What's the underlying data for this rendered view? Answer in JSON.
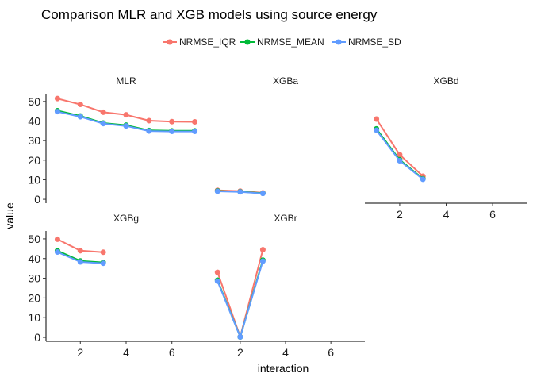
{
  "chart_data": {
    "type": "line",
    "title": "Comparison MLR and XGB models using source energy",
    "xlabel": "interaction",
    "ylabel": "value",
    "x_ticks": [
      2,
      4,
      6
    ],
    "y_ticks": [
      0,
      10,
      20,
      30,
      40,
      50
    ],
    "xlim": [
      0.5,
      7.5
    ],
    "ylim": [
      -2,
      54
    ],
    "grid": false,
    "legend": {
      "position": "top",
      "entries": [
        "NRMSE_IQR",
        "NRMSE_MEAN",
        "NRMSE_SD"
      ],
      "colors": [
        "#F8766D",
        "#00BA38",
        "#619CFF"
      ]
    },
    "panels": [
      {
        "name": "MLR",
        "series": [
          {
            "name": "NRMSE_IQR",
            "x": [
              1,
              2,
              3,
              4,
              5,
              6,
              7
            ],
            "values": [
              51.5,
              48.5,
              44.5,
              43.2,
              40.2,
              39.7,
              39.6
            ]
          },
          {
            "name": "NRMSE_MEAN",
            "x": [
              1,
              2,
              3,
              4,
              5,
              6,
              7
            ],
            "values": [
              45.3,
              42.6,
              39.0,
              37.9,
              35.2,
              35.0,
              35.0
            ]
          },
          {
            "name": "NRMSE_SD",
            "x": [
              1,
              2,
              3,
              4,
              5,
              6,
              7
            ],
            "values": [
              44.8,
              42.2,
              38.7,
              37.5,
              34.9,
              34.7,
              34.7
            ]
          }
        ]
      },
      {
        "name": "XGBa",
        "series": [
          {
            "name": "NRMSE_IQR",
            "x": [
              1,
              2,
              3
            ],
            "values": [
              4.6,
              4.2,
              3.3
            ]
          },
          {
            "name": "NRMSE_MEAN",
            "x": [
              1,
              2,
              3
            ],
            "values": [
              4.3,
              3.9,
              3.1
            ]
          },
          {
            "name": "NRMSE_SD",
            "x": [
              1,
              2,
              3
            ],
            "values": [
              4.1,
              3.8,
              3.0
            ]
          }
        ]
      },
      {
        "name": "XGBd",
        "series": [
          {
            "name": "NRMSE_IQR",
            "x": [
              1,
              2,
              3
            ],
            "values": [
              41.0,
              22.8,
              11.8
            ]
          },
          {
            "name": "NRMSE_MEAN",
            "x": [
              1,
              2,
              3
            ],
            "values": [
              36.0,
              20.2,
              10.5
            ]
          },
          {
            "name": "NRMSE_SD",
            "x": [
              1,
              2,
              3
            ],
            "values": [
              35.3,
              19.7,
              10.2
            ]
          }
        ]
      },
      {
        "name": "XGBg",
        "series": [
          {
            "name": "NRMSE_IQR",
            "x": [
              1,
              2,
              3
            ],
            "values": [
              49.8,
              44.0,
              43.2
            ]
          },
          {
            "name": "NRMSE_MEAN",
            "x": [
              1,
              2,
              3
            ],
            "values": [
              44.0,
              38.8,
              38.0
            ]
          },
          {
            "name": "NRMSE_SD",
            "x": [
              1,
              2,
              3
            ],
            "values": [
              43.3,
              38.3,
              37.6
            ]
          }
        ]
      },
      {
        "name": "XGBr",
        "series": [
          {
            "name": "NRMSE_IQR",
            "x": [
              1,
              2,
              3
            ],
            "values": [
              33.0,
              0.3,
              44.5
            ]
          },
          {
            "name": "NRMSE_MEAN",
            "x": [
              1,
              2,
              3
            ],
            "values": [
              29.0,
              0.2,
              39.2
            ]
          },
          {
            "name": "NRMSE_SD",
            "x": [
              1,
              2,
              3
            ],
            "values": [
              28.5,
              0.2,
              38.7
            ]
          }
        ]
      }
    ]
  }
}
